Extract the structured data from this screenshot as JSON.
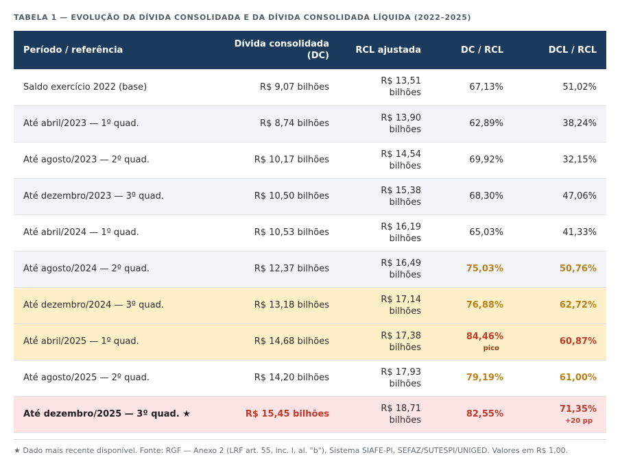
{
  "caption": "TABELA 1 — EVOLUÇÃO DA DÍVIDA CONSOLIDADA E DA DÍVIDA CONSOLIDADA LÍQUIDA (2022–2025)",
  "headers": {
    "period": "Período / referência",
    "dc_line1": "Dívida consolidada",
    "dc_line2": "(DC)",
    "rcl": "RCL ajustada",
    "dc_rcl": "DC / RCL",
    "dcl_rcl": "DCL / RCL"
  },
  "rows": [
    {
      "period": "Saldo exercício 2022 (base)",
      "dc": "R$ 9,07 bilhões",
      "rcl_line1": "R$ 13,51",
      "rcl_line2": "bilhões",
      "dc_rcl": "67,13%",
      "dcl_rcl": "51,02%"
    },
    {
      "period": "Até abril/2023 — 1º quad.",
      "dc": "R$ 8,74 bilhões",
      "rcl_line1": "R$ 13,90",
      "rcl_line2": "bilhões",
      "dc_rcl": "62,89%",
      "dcl_rcl": "38,24%"
    },
    {
      "period": "Até agosto/2023 — 2º quad.",
      "dc": "R$ 10,17 bilhões",
      "rcl_line1": "R$ 14,54",
      "rcl_line2": "bilhões",
      "dc_rcl": "69,92%",
      "dcl_rcl": "32,15%"
    },
    {
      "period": "Até dezembro/2023 — 3º quad.",
      "dc": "R$ 10,50 bilhões",
      "rcl_line1": "R$ 15,38",
      "rcl_line2": "bilhões",
      "dc_rcl": "68,30%",
      "dcl_rcl": "47,06%"
    },
    {
      "period": "Até abril/2024 — 1º quad.",
      "dc": "R$ 10,53 bilhões",
      "rcl_line1": "R$ 16,19",
      "rcl_line2": "bilhões",
      "dc_rcl": "65,03%",
      "dcl_rcl": "41,33%"
    },
    {
      "period": "Até agosto/2024 — 2º quad.",
      "dc": "R$ 12,37 bilhões",
      "rcl_line1": "R$ 16,49",
      "rcl_line2": "bilhões",
      "dc_rcl": "75,03%",
      "dcl_rcl": "50,76%"
    },
    {
      "period": "Até dezembro/2024 — 3º quad.",
      "dc": "R$ 13,18 bilhões",
      "rcl_line1": "R$ 17,14",
      "rcl_line2": "bilhões",
      "dc_rcl": "76,88%",
      "dcl_rcl": "62,72%"
    },
    {
      "period": "Até abril/2025 — 1º quad.",
      "dc": "R$ 14,68 bilhões",
      "rcl_line1": "R$ 17,38",
      "rcl_line2": "bilhões",
      "dc_rcl": "84,46%",
      "dc_rcl_note": "pico",
      "dcl_rcl": "60,87%"
    },
    {
      "period": "Até agosto/2025 — 2º quad.",
      "dc": "R$ 14,20 bilhões",
      "rcl_line1": "R$ 17,93",
      "rcl_line2": "bilhões",
      "dc_rcl": "79,19%",
      "dcl_rcl": "61,00%"
    },
    {
      "period": "Até dezembro/2025 — 3º quad. ★",
      "dc": "R$ 15,45 bilhões",
      "rcl_line1": "R$ 18,71",
      "rcl_line2": "bilhões",
      "dc_rcl": "82,55%",
      "dcl_rcl": "71,35%",
      "dcl_rcl_note": "+20 pp"
    }
  ],
  "footnote": "★ Dado mais recente disponível. Fonte: RGF — Anexo 2 (LRF art. 55, inc. I, al. \"b\"), Sistema SIAFE-PI, SEFAZ/SUTESPI/UNIGED. Valores em R$ 1,00.",
  "colors": {
    "header_bg": "#1b3a5c",
    "warning_text": "#b8801b",
    "critical_text": "#c0392b",
    "highlight_row": "#fdf0c8",
    "latest_row": "#fde4e4"
  }
}
